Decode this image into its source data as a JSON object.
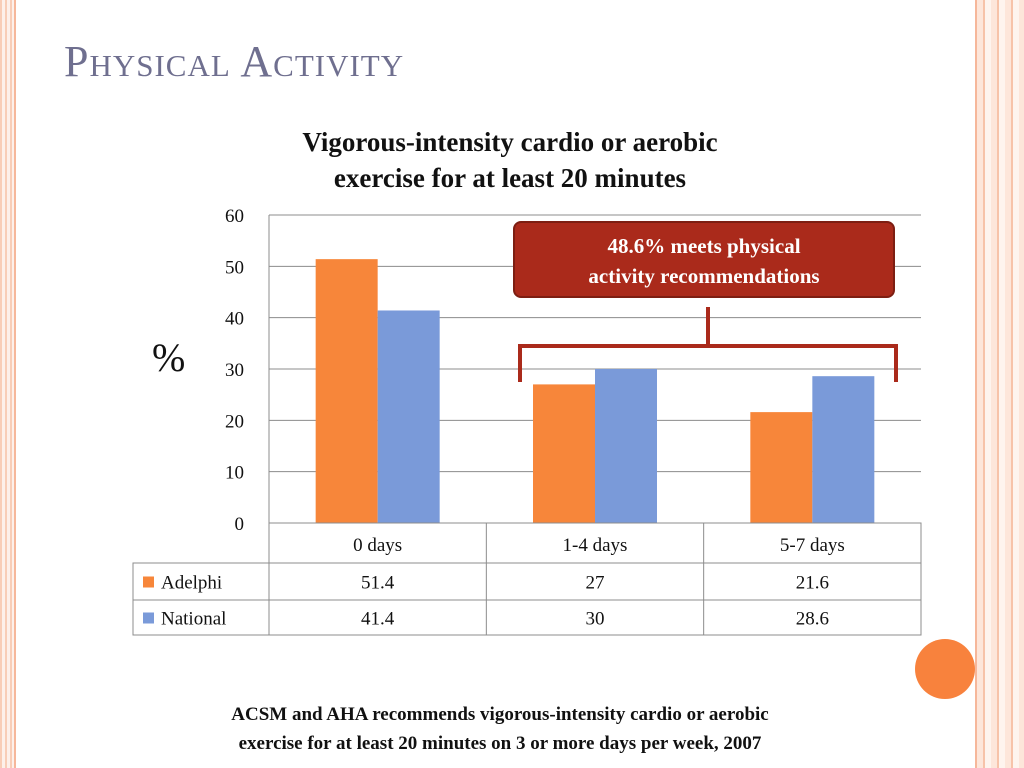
{
  "slide": {
    "title": "Physical Activity",
    "y_unit": "%",
    "callout_line1": "48.6% meets physical",
    "callout_line2": "activity recommendations",
    "footnote_line1": "ACSM and AHA recommends vigorous-intensity cardio or aerobic",
    "footnote_line2": "exercise for at least 20 minutes on 3 or more days per week, 2007"
  },
  "chart_data": {
    "type": "bar",
    "title_line1": "Vigorous-intensity cardio or aerobic",
    "title_line2": "exercise for at least 20 minutes",
    "categories": [
      "0 days",
      "1-4 days",
      "5-7 days"
    ],
    "series": [
      {
        "name": "Adelphi",
        "values": [
          51.4,
          27,
          21.6
        ],
        "color": "#f7863a"
      },
      {
        "name": "National",
        "values": [
          41.4,
          30,
          28.6
        ],
        "color": "#7a9ad9"
      }
    ],
    "ylim": [
      0,
      60
    ],
    "yticks": [
      0,
      10,
      20,
      30,
      40,
      50,
      60
    ],
    "grid": true,
    "data_table": true
  }
}
